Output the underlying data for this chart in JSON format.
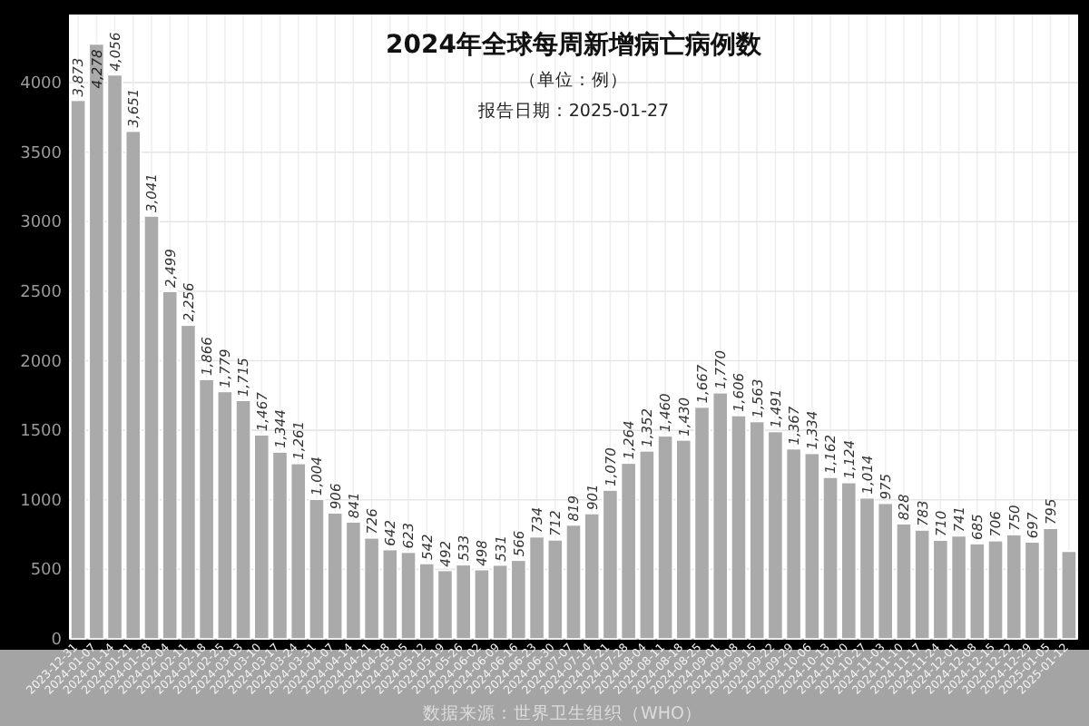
{
  "chart_data": {
    "type": "bar",
    "title": "2024年全球每周新增病亡病例数",
    "subtitle": "（单位：例）",
    "annotations": [
      "报告日期：2025-01-27",
      "数据来源：世界卫生组织（WHO）"
    ],
    "categories": [
      "2023-12-31",
      "2024-01-07",
      "2024-01-14",
      "2024-01-21",
      "2024-01-28",
      "2024-02-04",
      "2024-02-11",
      "2024-02-18",
      "2024-02-25",
      "2024-03-03",
      "2024-03-10",
      "2024-03-17",
      "2024-03-24",
      "2024-03-31",
      "2024-04-07",
      "2024-04-14",
      "2024-04-21",
      "2024-04-28",
      "2024-05-05",
      "2024-05-12",
      "2024-05-19",
      "2024-05-26",
      "2024-06-02",
      "2024-06-09",
      "2024-06-16",
      "2024-06-23",
      "2024-06-30",
      "2024-07-07",
      "2024-07-14",
      "2024-07-21",
      "2024-07-28",
      "2024-08-04",
      "2024-08-11",
      "2024-08-18",
      "2024-08-25",
      "2024-09-01",
      "2024-09-08",
      "2024-09-15",
      "2024-09-22",
      "2024-09-29",
      "2024-10-06",
      "2024-10-13",
      "2024-10-20",
      "2024-10-27",
      "2024-11-03",
      "2024-11-10",
      "2024-11-17",
      "2024-11-24",
      "2024-12-01",
      "2024-12-08",
      "2024-12-15",
      "2024-12-22",
      "2024-12-29",
      "2025-01-05",
      "2025-01-12"
    ],
    "values": [
      3873,
      4278,
      4056,
      3651,
      3041,
      2499,
      2256,
      1866,
      1779,
      1715,
      1467,
      1344,
      1261,
      1004,
      906,
      841,
      726,
      642,
      623,
      542,
      492,
      533,
      498,
      531,
      566,
      734,
      712,
      819,
      901,
      1070,
      1264,
      1352,
      1460,
      1430,
      1667,
      1770,
      1606,
      1563,
      1491,
      1367,
      1334,
      1162,
      1124,
      1014,
      975,
      828,
      783,
      710,
      741,
      685,
      706,
      750,
      697,
      795,
      630
    ],
    "value_labels": [
      "3,873",
      "4,278",
      "4,056",
      "3,651",
      "3,041",
      "2,499",
      "2,256",
      "1,866",
      "1,779",
      "1,715",
      "1,467",
      "1,344",
      "1,261",
      "1,004",
      "906",
      "841",
      "726",
      "642",
      "623",
      "542",
      "492",
      "533",
      "498",
      "531",
      "566",
      "734",
      "712",
      "819",
      "901",
      "1,070",
      "1,264",
      "1,352",
      "1,460",
      "1,430",
      "1,667",
      "1,770",
      "1,606",
      "1,563",
      "1,491",
      "1,367",
      "1,334",
      "1,162",
      "1,124",
      "1,014",
      "975",
      "828",
      "783",
      "710",
      "741",
      "685",
      "706",
      "750",
      "697",
      "795",
      null
    ],
    "color": "#aaaaaa",
    "ylim": [
      0,
      4490
    ],
    "yticks": [
      0,
      500,
      1000,
      1500,
      2000,
      2500,
      3000,
      3500,
      4000
    ],
    "grid": true
  }
}
